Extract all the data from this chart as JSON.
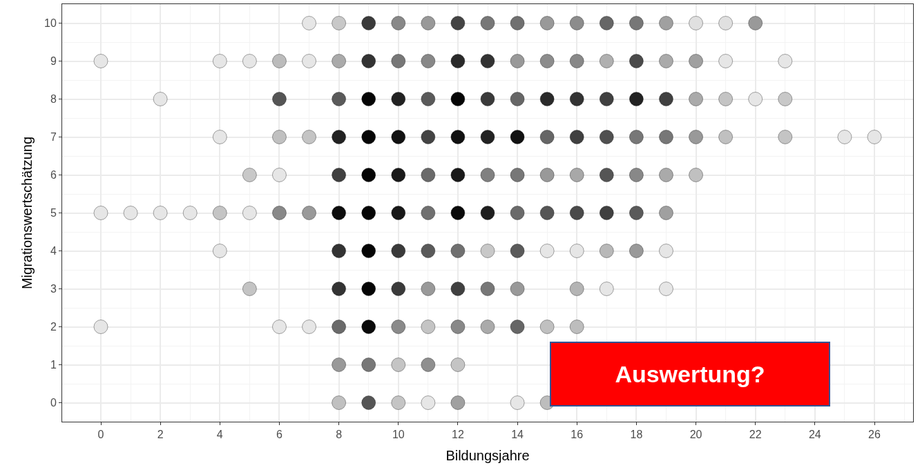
{
  "chart_data": {
    "type": "scatter",
    "xlabel": "Bildungsjahre",
    "ylabel": "Migrationswertschätzung",
    "marker": "circle",
    "grid": true,
    "xlim": [
      -1.3,
      27.3
    ],
    "ylim": [
      -0.5,
      10.5
    ],
    "xticks": [
      0,
      2,
      4,
      6,
      8,
      10,
      12,
      14,
      16,
      18,
      20,
      22,
      24,
      26
    ],
    "yticks": [
      0,
      1,
      2,
      3,
      4,
      5,
      6,
      7,
      8,
      9,
      10
    ],
    "x": [
      7,
      8,
      9,
      10,
      11,
      12,
      13,
      14,
      15,
      16,
      17,
      18,
      19,
      20,
      21,
      22,
      0,
      4,
      5,
      6,
      7,
      8,
      9,
      10,
      11,
      12,
      13,
      14,
      15,
      16,
      17,
      18,
      19,
      20,
      21,
      23,
      2,
      6,
      8,
      9,
      10,
      11,
      12,
      13,
      14,
      15,
      16,
      17,
      18,
      19,
      20,
      21,
      22,
      23,
      4,
      6,
      7,
      8,
      9,
      10,
      11,
      12,
      13,
      14,
      15,
      16,
      17,
      18,
      19,
      20,
      21,
      23,
      25,
      26,
      5,
      6,
      8,
      9,
      10,
      11,
      12,
      13,
      14,
      15,
      16,
      17,
      18,
      19,
      20,
      0,
      1,
      2,
      3,
      4,
      5,
      6,
      7,
      8,
      9,
      10,
      11,
      12,
      13,
      14,
      15,
      16,
      17,
      18,
      19,
      4,
      8,
      9,
      10,
      11,
      12,
      13,
      14,
      15,
      16,
      17,
      18,
      19,
      5,
      8,
      9,
      10,
      11,
      12,
      13,
      14,
      16,
      17,
      19,
      0,
      6,
      7,
      8,
      9,
      10,
      11,
      12,
      13,
      14,
      15,
      16,
      8,
      9,
      10,
      11,
      12,
      8,
      9,
      10,
      11,
      12,
      14,
      15
    ],
    "values": [
      10,
      10,
      10,
      10,
      10,
      10,
      10,
      10,
      10,
      10,
      10,
      10,
      10,
      10,
      10,
      10,
      9,
      9,
      9,
      9,
      9,
      9,
      9,
      9,
      9,
      9,
      9,
      9,
      9,
      9,
      9,
      9,
      9,
      9,
      9,
      9,
      8,
      8,
      8,
      8,
      8,
      8,
      8,
      8,
      8,
      8,
      8,
      8,
      8,
      8,
      8,
      8,
      8,
      8,
      7,
      7,
      7,
      7,
      7,
      7,
      7,
      7,
      7,
      7,
      7,
      7,
      7,
      7,
      7,
      7,
      7,
      7,
      7,
      7,
      6,
      6,
      6,
      6,
      6,
      6,
      6,
      6,
      6,
      6,
      6,
      6,
      6,
      6,
      6,
      5,
      5,
      5,
      5,
      5,
      5,
      5,
      5,
      5,
      5,
      5,
      5,
      5,
      5,
      5,
      5,
      5,
      5,
      5,
      5,
      4,
      4,
      4,
      4,
      4,
      4,
      4,
      4,
      4,
      4,
      4,
      4,
      4,
      3,
      3,
      3,
      3,
      3,
      3,
      3,
      3,
      3,
      3,
      3,
      2,
      2,
      2,
      2,
      2,
      2,
      2,
      2,
      2,
      2,
      2,
      2,
      1,
      1,
      1,
      1,
      1,
      0,
      0,
      0,
      0,
      0,
      0,
      0
    ],
    "colors": [
      "#e6e6e6",
      "#c8c8c8",
      "#3a3a3a",
      "#888888",
      "#999999",
      "#444444",
      "#777777",
      "#707070",
      "#999999",
      "#8c8c8c",
      "#666666",
      "#777777",
      "#a0a0a0",
      "#e0e0e0",
      "#e0e0e0",
      "#999999",
      "#e6e6e6",
      "#e6e6e6",
      "#e6e6e6",
      "#bbbbbb",
      "#e6e6e6",
      "#aaaaaa",
      "#333333",
      "#777777",
      "#888888",
      "#2a2a2a",
      "#333333",
      "#999999",
      "#8c8c8c",
      "#888888",
      "#b0b0b0",
      "#4a4a4a",
      "#aaaaaa",
      "#a0a0a0",
      "#e6e6e6",
      "#e6e6e6",
      "#e6e6e6",
      "#555555",
      "#5a5a5a",
      "#050505",
      "#222222",
      "#5a5a5a",
      "#050505",
      "#3a3a3a",
      "#666666",
      "#2a2a2a",
      "#333333",
      "#404040",
      "#222222",
      "#404040",
      "#aaaaaa",
      "#c4c4c4",
      "#e6e6e6",
      "#c8c8c8",
      "#e6e6e6",
      "#c0c0c0",
      "#c4c4c4",
      "#222222",
      "#050505",
      "#111111",
      "#444444",
      "#111111",
      "#222222",
      "#111111",
      "#666666",
      "#404040",
      "#505050",
      "#777777",
      "#777777",
      "#999999",
      "#c0c0c0",
      "#c4c4c4",
      "#e6e6e6",
      "#e6e6e6",
      "#c8c8c8",
      "#e6e6e6",
      "#404040",
      "#050505",
      "#1a1a1a",
      "#6a6a6a",
      "#1a1a1a",
      "#808080",
      "#777777",
      "#999999",
      "#a8a8a8",
      "#555555",
      "#888888",
      "#aaaaaa",
      "#c0c0c0",
      "#e6e6e6",
      "#e6e6e6",
      "#e6e6e6",
      "#e6e6e6",
      "#c4c4c4",
      "#e6e6e6",
      "#888888",
      "#999999",
      "#0d0d0d",
      "#050505",
      "#181818",
      "#707070",
      "#0a0a0a",
      "#1e1e1e",
      "#6a6a6a",
      "#555555",
      "#4a4a4a",
      "#404040",
      "#5a5a5a",
      "#a0a0a0",
      "#e6e6e6",
      "#333333",
      "#050505",
      "#3a3a3a",
      "#5a5a5a",
      "#707070",
      "#c8c8c8",
      "#5a5a5a",
      "#e6e6e6",
      "#e6e6e6",
      "#b8b8b8",
      "#999999",
      "#e6e6e6",
      "#c4c4c4",
      "#333333",
      "#050505",
      "#3a3a3a",
      "#999999",
      "#404040",
      "#777777",
      "#999999",
      "#b4b4b4",
      "#e6e6e6",
      "#e6e6e6",
      "#e6e6e6",
      "#e6e6e6",
      "#e6e6e6",
      "#6a6a6a",
      "#0a0a0a",
      "#8a8a8a",
      "#c4c4c4",
      "#888888",
      "#aaaaaa",
      "#666666",
      "#c0c0c0",
      "#bdbdbd",
      "#999999",
      "#777777",
      "#c4c4c4",
      "#8f8f8f",
      "#c4c4c4",
      "#c0c0c0",
      "#555555",
      "#c4c4c4",
      "#e6e6e6",
      "#a0a0a0",
      "#e6e6e6",
      "#bdbdbd"
    ],
    "annotations": [
      "Auswertung?"
    ]
  }
}
